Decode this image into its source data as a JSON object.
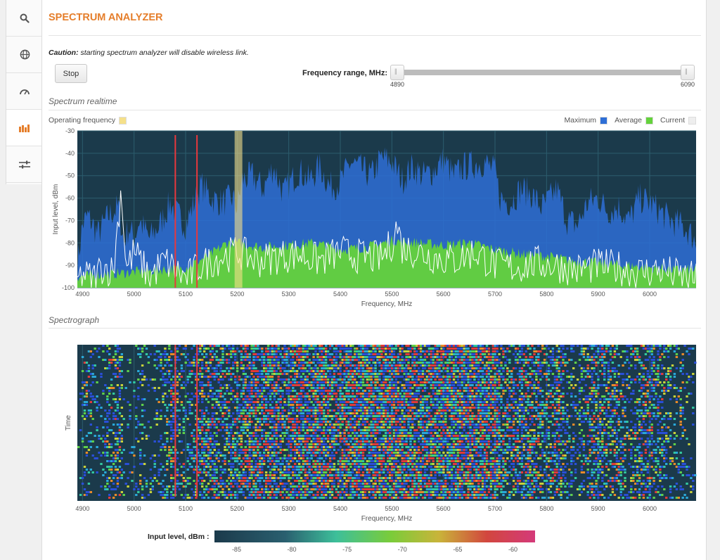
{
  "app": {
    "title": "SPECTRUM ANALYZER"
  },
  "sidebar": {
    "items": [
      {
        "icon": "search-icon"
      },
      {
        "icon": "globe-icon"
      },
      {
        "icon": "gauge-icon"
      },
      {
        "icon": "bars-icon",
        "active": true
      },
      {
        "icon": "sliders-icon"
      }
    ]
  },
  "caution": {
    "bold": "Caution:",
    "text": " starting spectrum analyzer will disable wireless link."
  },
  "controls": {
    "stop_label": "Stop",
    "freq_range_label": "Frequency range, MHz:",
    "range_min": "4890",
    "range_max": "6090"
  },
  "realtime": {
    "title": "Spectrum realtime",
    "op_freq_label": "Operating frequency",
    "legend": {
      "max": "Maximum",
      "avg": "Average",
      "cur": "Current"
    }
  },
  "spectrograph": {
    "title": "Spectrograph"
  },
  "colors": {
    "accent": "#e57e2b",
    "max": "#2e6fd6",
    "avg": "#64d23c",
    "cur": "#ffffff",
    "op": "#f5e08a",
    "marker": "#e8383d",
    "bg": "#1b3a4b"
  },
  "chart_data": [
    {
      "type": "area",
      "title": "Spectrum realtime",
      "xlabel": "Frequency, MHz",
      "ylabel": "Input level, dBm",
      "xlim": [
        4890,
        6090
      ],
      "ylim": [
        -100,
        -30
      ],
      "xticks": [
        4900,
        5000,
        5100,
        5200,
        5300,
        5400,
        5500,
        5600,
        5700,
        5800,
        5900,
        6000
      ],
      "yticks": [
        -30,
        -40,
        -50,
        -60,
        -70,
        -80,
        -90,
        -100
      ],
      "legend_position": "top-right",
      "grid": true,
      "operating_frequency": [
        5195,
        5210
      ],
      "markers": [
        5080,
        5122
      ],
      "series": [
        {
          "name": "Maximum",
          "x": [
            4890,
            4900,
            4910,
            4930,
            4950,
            4970,
            4980,
            4990,
            5000,
            5010,
            5030,
            5050,
            5070,
            5080,
            5100,
            5120,
            5130,
            5150,
            5170,
            5190,
            5200,
            5210,
            5230,
            5250,
            5270,
            5290,
            5300,
            5320,
            5340,
            5360,
            5380,
            5400,
            5420,
            5440,
            5460,
            5480,
            5500,
            5520,
            5540,
            5560,
            5580,
            5600,
            5620,
            5640,
            5660,
            5680,
            5700,
            5710,
            5730,
            5750,
            5770,
            5790,
            5800,
            5820,
            5840,
            5860,
            5880,
            5900,
            5920,
            5940,
            5960,
            5980,
            6000,
            6020,
            6040,
            6060,
            6080,
            6090
          ],
          "values": [
            -90,
            -72,
            -68,
            -76,
            -68,
            -64,
            -80,
            -73,
            -78,
            -70,
            -78,
            -72,
            -62,
            -66,
            -72,
            -60,
            -54,
            -60,
            -62,
            -60,
            -64,
            -52,
            -50,
            -56,
            -46,
            -58,
            -54,
            -48,
            -52,
            -46,
            -55,
            -53,
            -44,
            -47,
            -50,
            -42,
            -44,
            -52,
            -46,
            -50,
            -48,
            -43,
            -50,
            -46,
            -45,
            -44,
            -48,
            -60,
            -62,
            -56,
            -58,
            -64,
            -62,
            -56,
            -70,
            -72,
            -62,
            -60,
            -66,
            -64,
            -70,
            -60,
            -62,
            -66,
            -70,
            -72,
            -76,
            -80
          ]
        },
        {
          "name": "Average",
          "x": [
            4890,
            4950,
            5000,
            5050,
            5100,
            5150,
            5180,
            5200,
            5250,
            5300,
            5350,
            5400,
            5450,
            5500,
            5550,
            5600,
            5650,
            5700,
            5750,
            5800,
            5850,
            5900,
            5950,
            6000,
            6050,
            6090
          ],
          "values": [
            -95,
            -94,
            -93,
            -92,
            -91,
            -85,
            -80,
            -80,
            -82,
            -81,
            -80,
            -83,
            -82,
            -79,
            -80,
            -81,
            -80,
            -83,
            -85,
            -86,
            -88,
            -89,
            -90,
            -91,
            -92,
            -92
          ]
        },
        {
          "name": "Current",
          "x": [
            4890,
            4900,
            4920,
            4940,
            4960,
            4975,
            4985,
            5000,
            5030,
            5060,
            5100,
            5130,
            5160,
            5200,
            5240,
            5280,
            5320,
            5360,
            5400,
            5440,
            5480,
            5500,
            5510,
            5520,
            5550,
            5580,
            5620,
            5660,
            5700,
            5740,
            5780,
            5820,
            5860,
            5900,
            5940,
            5980,
            6020,
            6060,
            6090
          ],
          "values": [
            -97,
            -94,
            -96,
            -90,
            -93,
            -55,
            -92,
            -84,
            -95,
            -88,
            -96,
            -90,
            -87,
            -84,
            -88,
            -86,
            -85,
            -88,
            -84,
            -86,
            -87,
            -80,
            -72,
            -82,
            -84,
            -86,
            -88,
            -84,
            -90,
            -91,
            -89,
            -90,
            -92,
            -90,
            -91,
            -93,
            -92,
            -95,
            -96
          ]
        }
      ]
    },
    {
      "type": "heatmap",
      "title": "Spectrograph",
      "xlabel": "Frequency, MHz",
      "ylabel": "Time",
      "xlim": [
        4890,
        6090
      ],
      "xticks": [
        4900,
        5000,
        5100,
        5200,
        5300,
        5400,
        5500,
        5600,
        5700,
        5800,
        5900,
        6000
      ],
      "markers": [
        5080,
        5122
      ],
      "colorbar": {
        "label": "Input level, dBm :",
        "ticks": [
          -85,
          -80,
          -75,
          -70,
          -65,
          -60
        ],
        "range": [
          -87,
          -58
        ]
      }
    }
  ]
}
